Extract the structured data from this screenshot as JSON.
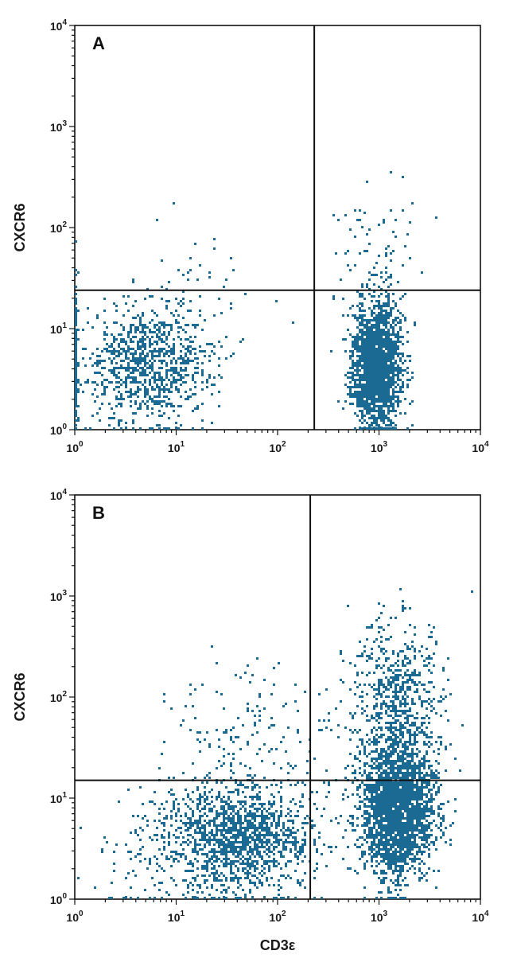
{
  "chart_data": [
    {
      "type": "scatter",
      "panel_label": "A",
      "x_scale": "log",
      "y_scale": "log",
      "xlabel": "",
      "ylabel": "CXCR6",
      "xlim": [
        1,
        10000
      ],
      "ylim": [
        1,
        10000
      ],
      "x_ticks": [
        {
          "base": "10",
          "exp": "0"
        },
        {
          "base": "10",
          "exp": "1"
        },
        {
          "base": "10",
          "exp": "2"
        },
        {
          "base": "10",
          "exp": "3"
        },
        {
          "base": "10",
          "exp": "4"
        }
      ],
      "y_ticks": [
        {
          "base": "10",
          "exp": "0"
        },
        {
          "base": "10",
          "exp": "1"
        },
        {
          "base": "10",
          "exp": "2"
        },
        {
          "base": "10",
          "exp": "3"
        },
        {
          "base": "10",
          "exp": "4"
        }
      ],
      "quadrant_gates": {
        "x": 230,
        "y": 24
      },
      "point_color": "#1b6a93",
      "clusters": [
        {
          "center": [
            5.5,
            4.5
          ],
          "spread": [
            0.32,
            0.3
          ],
          "count": 950
        },
        {
          "center": [
            950,
            4.2
          ],
          "spread": [
            0.12,
            0.3
          ],
          "count": 2200
        },
        {
          "center": [
            900,
            45
          ],
          "spread": [
            0.2,
            0.3
          ],
          "count": 80
        },
        {
          "center": [
            20,
            30
          ],
          "spread": [
            0.5,
            0.35
          ],
          "count": 40
        },
        {
          "center": [
            1.02,
            5
          ],
          "spread": [
            0.008,
            0.4
          ],
          "count": 120
        }
      ]
    },
    {
      "type": "scatter",
      "panel_label": "B",
      "x_scale": "log",
      "y_scale": "log",
      "xlabel": "CD3ε",
      "ylabel": "CXCR6",
      "xlim": [
        1,
        10000
      ],
      "ylim": [
        1,
        10000
      ],
      "x_ticks": [
        {
          "base": "10",
          "exp": "0"
        },
        {
          "base": "10",
          "exp": "1"
        },
        {
          "base": "10",
          "exp": "2"
        },
        {
          "base": "10",
          "exp": "3"
        },
        {
          "base": "10",
          "exp": "4"
        }
      ],
      "y_ticks": [
        {
          "base": "10",
          "exp": "0"
        },
        {
          "base": "10",
          "exp": "1"
        },
        {
          "base": "10",
          "exp": "2"
        },
        {
          "base": "10",
          "exp": "3"
        },
        {
          "base": "10",
          "exp": "4"
        }
      ],
      "quadrant_gates": {
        "x": 210,
        "y": 15
      },
      "point_color": "#1b6a93",
      "clusters": [
        {
          "center": [
            40,
            4
          ],
          "spread": [
            0.38,
            0.28
          ],
          "count": 1500
        },
        {
          "center": [
            1500,
            8
          ],
          "spread": [
            0.18,
            0.33
          ],
          "count": 2600
        },
        {
          "center": [
            1500,
            80
          ],
          "spread": [
            0.22,
            0.45
          ],
          "count": 700
        },
        {
          "center": [
            60,
            40
          ],
          "spread": [
            0.45,
            0.4
          ],
          "count": 160
        },
        {
          "center": [
            5,
            2.5
          ],
          "spread": [
            0.35,
            0.3
          ],
          "count": 60
        }
      ]
    }
  ]
}
